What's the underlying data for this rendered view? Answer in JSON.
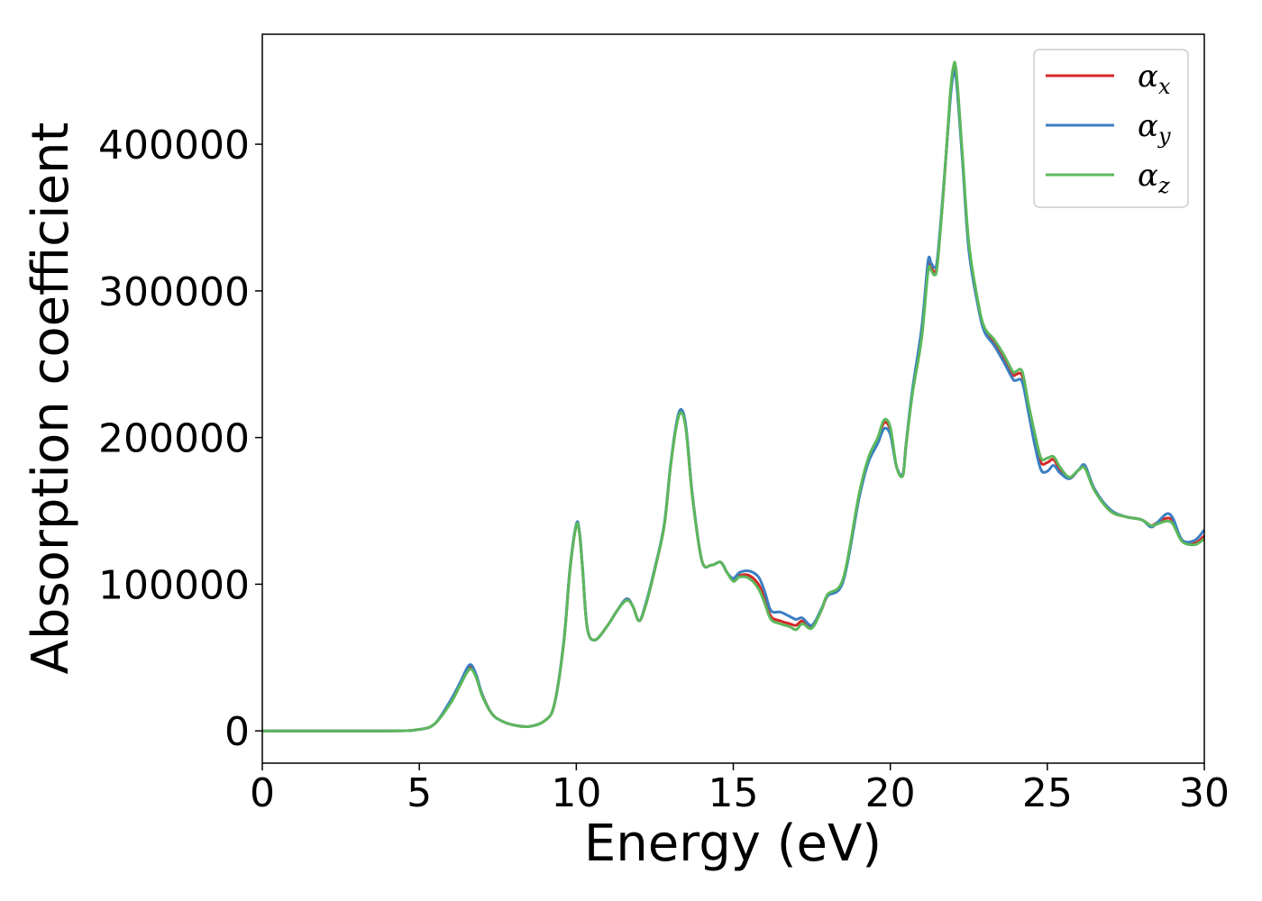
{
  "chart_data": {
    "type": "line",
    "xlabel": "Energy (eV)",
    "ylabel": "Absorption coefficient",
    "xlim": [
      0,
      30
    ],
    "ylim": [
      -22000,
      475000
    ],
    "xticks": [
      0,
      5,
      10,
      15,
      20,
      25,
      30
    ],
    "yticks": [
      0,
      100000,
      200000,
      300000,
      400000
    ],
    "grid": false,
    "legend_position": "top-right",
    "series": [
      {
        "name": "αx",
        "symbol": "α",
        "subscript": "x",
        "color": "#d62728",
        "x": [
          0,
          4,
          5,
          5.5,
          6,
          6.3,
          6.6,
          6.8,
          7.0,
          7.3,
          7.6,
          8.0,
          8.5,
          9.0,
          9.3,
          9.6,
          9.8,
          10.0,
          10.1,
          10.2,
          10.35,
          10.6,
          11.0,
          11.3,
          11.6,
          11.8,
          12.0,
          12.2,
          12.5,
          12.8,
          13.0,
          13.2,
          13.35,
          13.5,
          13.7,
          14.0,
          14.3,
          14.6,
          14.8,
          15.0,
          15.2,
          15.5,
          15.8,
          16.0,
          16.2,
          16.5,
          16.8,
          17.0,
          17.2,
          17.5,
          17.8,
          18.0,
          18.5,
          19.0,
          19.3,
          19.6,
          19.8,
          20.0,
          20.2,
          20.4,
          20.5,
          20.7,
          21.0,
          21.2,
          21.3,
          21.4,
          21.5,
          21.7,
          21.9,
          22.0,
          22.1,
          22.3,
          22.5,
          22.8,
          23.0,
          23.3,
          23.6,
          23.9,
          24.0,
          24.2,
          24.4,
          24.6,
          24.8,
          25.0,
          25.2,
          25.4,
          25.7,
          26.0,
          26.2,
          26.5,
          27.0,
          27.5,
          28.0,
          28.3,
          28.5,
          28.8,
          29.0,
          29.3,
          29.7,
          30.0
        ],
        "y": [
          0,
          0,
          1000,
          5000,
          20000,
          32000,
          44000,
          38000,
          25000,
          12000,
          7000,
          4000,
          3000,
          7000,
          18000,
          60000,
          110000,
          140000,
          135000,
          110000,
          70000,
          62000,
          72000,
          82000,
          90000,
          85000,
          75000,
          85000,
          110000,
          140000,
          180000,
          210000,
          218000,
          205000,
          160000,
          116000,
          113000,
          115000,
          108000,
          103000,
          106000,
          106000,
          100000,
          90000,
          78000,
          75000,
          73000,
          72000,
          75000,
          71000,
          82000,
          92000,
          103000,
          160000,
          185000,
          198000,
          210000,
          205000,
          180000,
          175000,
          195000,
          230000,
          270000,
          315000,
          316000,
          313000,
          320000,
          370000,
          430000,
          450000,
          448000,
          390000,
          330000,
          290000,
          273000,
          265000,
          255000,
          243000,
          243000,
          242000,
          220000,
          200000,
          183000,
          183000,
          185000,
          178000,
          172000,
          178000,
          180000,
          165000,
          150000,
          146000,
          144000,
          140000,
          142000,
          145000,
          143000,
          130000,
          128000,
          133000
        ]
      },
      {
        "name": "αy",
        "symbol": "α",
        "subscript": "y",
        "color": "#3a7fc1",
        "x": [
          0,
          4,
          5,
          5.5,
          6,
          6.3,
          6.6,
          6.8,
          7.0,
          7.3,
          7.6,
          8.0,
          8.5,
          9.0,
          9.3,
          9.6,
          9.8,
          10.0,
          10.1,
          10.2,
          10.35,
          10.6,
          11.0,
          11.3,
          11.6,
          11.8,
          12.0,
          12.2,
          12.5,
          12.8,
          13.0,
          13.2,
          13.35,
          13.5,
          13.7,
          14.0,
          14.3,
          14.6,
          14.8,
          15.0,
          15.2,
          15.5,
          15.8,
          16.0,
          16.2,
          16.5,
          16.8,
          17.0,
          17.2,
          17.5,
          17.8,
          18.0,
          18.5,
          19.0,
          19.3,
          19.6,
          19.8,
          20.0,
          20.2,
          20.4,
          20.5,
          20.7,
          21.0,
          21.2,
          21.3,
          21.4,
          21.5,
          21.7,
          21.9,
          22.0,
          22.1,
          22.3,
          22.5,
          22.8,
          23.0,
          23.3,
          23.6,
          23.9,
          24.0,
          24.2,
          24.4,
          24.6,
          24.8,
          25.0,
          25.2,
          25.4,
          25.7,
          26.0,
          26.2,
          26.5,
          27.0,
          27.5,
          28.0,
          28.3,
          28.5,
          28.8,
          29.0,
          29.3,
          29.7,
          30.0
        ],
        "y": [
          0,
          0,
          1000,
          5000,
          21000,
          33000,
          45000,
          39000,
          25000,
          12000,
          7000,
          4000,
          3000,
          7000,
          18000,
          61000,
          111000,
          141000,
          136000,
          111000,
          70000,
          62000,
          72000,
          82000,
          90000,
          85000,
          75000,
          86000,
          111000,
          141000,
          181000,
          211000,
          219000,
          206000,
          160000,
          116000,
          113000,
          115000,
          108000,
          104000,
          108000,
          109000,
          105000,
          95000,
          82000,
          81000,
          78000,
          76000,
          77000,
          72000,
          83000,
          92000,
          102000,
          158000,
          183000,
          196000,
          206000,
          202000,
          180000,
          175000,
          195000,
          232000,
          275000,
          320000,
          319000,
          316000,
          322000,
          372000,
          428000,
          447000,
          444000,
          388000,
          328000,
          289000,
          272000,
          263000,
          252000,
          240000,
          239000,
          238000,
          217000,
          195000,
          178000,
          177000,
          181000,
          176000,
          172000,
          178000,
          181000,
          165000,
          151000,
          146000,
          144000,
          139000,
          142000,
          148000,
          145000,
          130000,
          130000,
          137000
        ]
      },
      {
        "name": "αz",
        "symbol": "α",
        "subscript": "z",
        "color": "#5cb85c",
        "x": [
          0,
          4,
          5,
          5.5,
          6,
          6.3,
          6.6,
          6.8,
          7.0,
          7.3,
          7.6,
          8.0,
          8.5,
          9.0,
          9.3,
          9.6,
          9.8,
          10.0,
          10.1,
          10.2,
          10.35,
          10.6,
          11.0,
          11.3,
          11.6,
          11.8,
          12.0,
          12.2,
          12.5,
          12.8,
          13.0,
          13.2,
          13.35,
          13.5,
          13.7,
          14.0,
          14.3,
          14.6,
          14.8,
          15.0,
          15.2,
          15.5,
          15.8,
          16.0,
          16.2,
          16.5,
          16.8,
          17.0,
          17.2,
          17.5,
          17.8,
          18.0,
          18.5,
          19.0,
          19.3,
          19.6,
          19.8,
          20.0,
          20.2,
          20.4,
          20.5,
          20.7,
          21.0,
          21.2,
          21.3,
          21.4,
          21.5,
          21.7,
          21.9,
          22.0,
          22.1,
          22.3,
          22.5,
          22.8,
          23.0,
          23.3,
          23.6,
          23.9,
          24.0,
          24.2,
          24.4,
          24.6,
          24.8,
          25.0,
          25.2,
          25.4,
          25.7,
          26.0,
          26.2,
          26.5,
          27.0,
          27.5,
          28.0,
          28.3,
          28.5,
          28.8,
          29.0,
          29.3,
          29.7,
          30.0
        ],
        "y": [
          0,
          0,
          1000,
          5000,
          19000,
          31000,
          42000,
          37000,
          24000,
          12000,
          7000,
          4000,
          3000,
          7000,
          18000,
          60000,
          110000,
          140000,
          135000,
          110000,
          70000,
          62000,
          72000,
          82000,
          89000,
          85000,
          75000,
          85000,
          110000,
          140000,
          180000,
          209000,
          217000,
          204000,
          159000,
          116000,
          113000,
          115000,
          108000,
          102000,
          105000,
          104000,
          97000,
          87000,
          76000,
          73000,
          71000,
          69000,
          73000,
          70000,
          82000,
          93000,
          104000,
          161000,
          186000,
          200000,
          212000,
          207000,
          180000,
          174000,
          194000,
          229000,
          268000,
          313000,
          314000,
          311000,
          318000,
          370000,
          432000,
          452000,
          450000,
          392000,
          333000,
          292000,
          275000,
          267000,
          257000,
          245000,
          245000,
          245000,
          223000,
          203000,
          186000,
          186000,
          187000,
          180000,
          173000,
          178000,
          179000,
          164000,
          150000,
          146000,
          144000,
          140000,
          141000,
          143000,
          141000,
          129000,
          127000,
          131000
        ]
      }
    ]
  }
}
